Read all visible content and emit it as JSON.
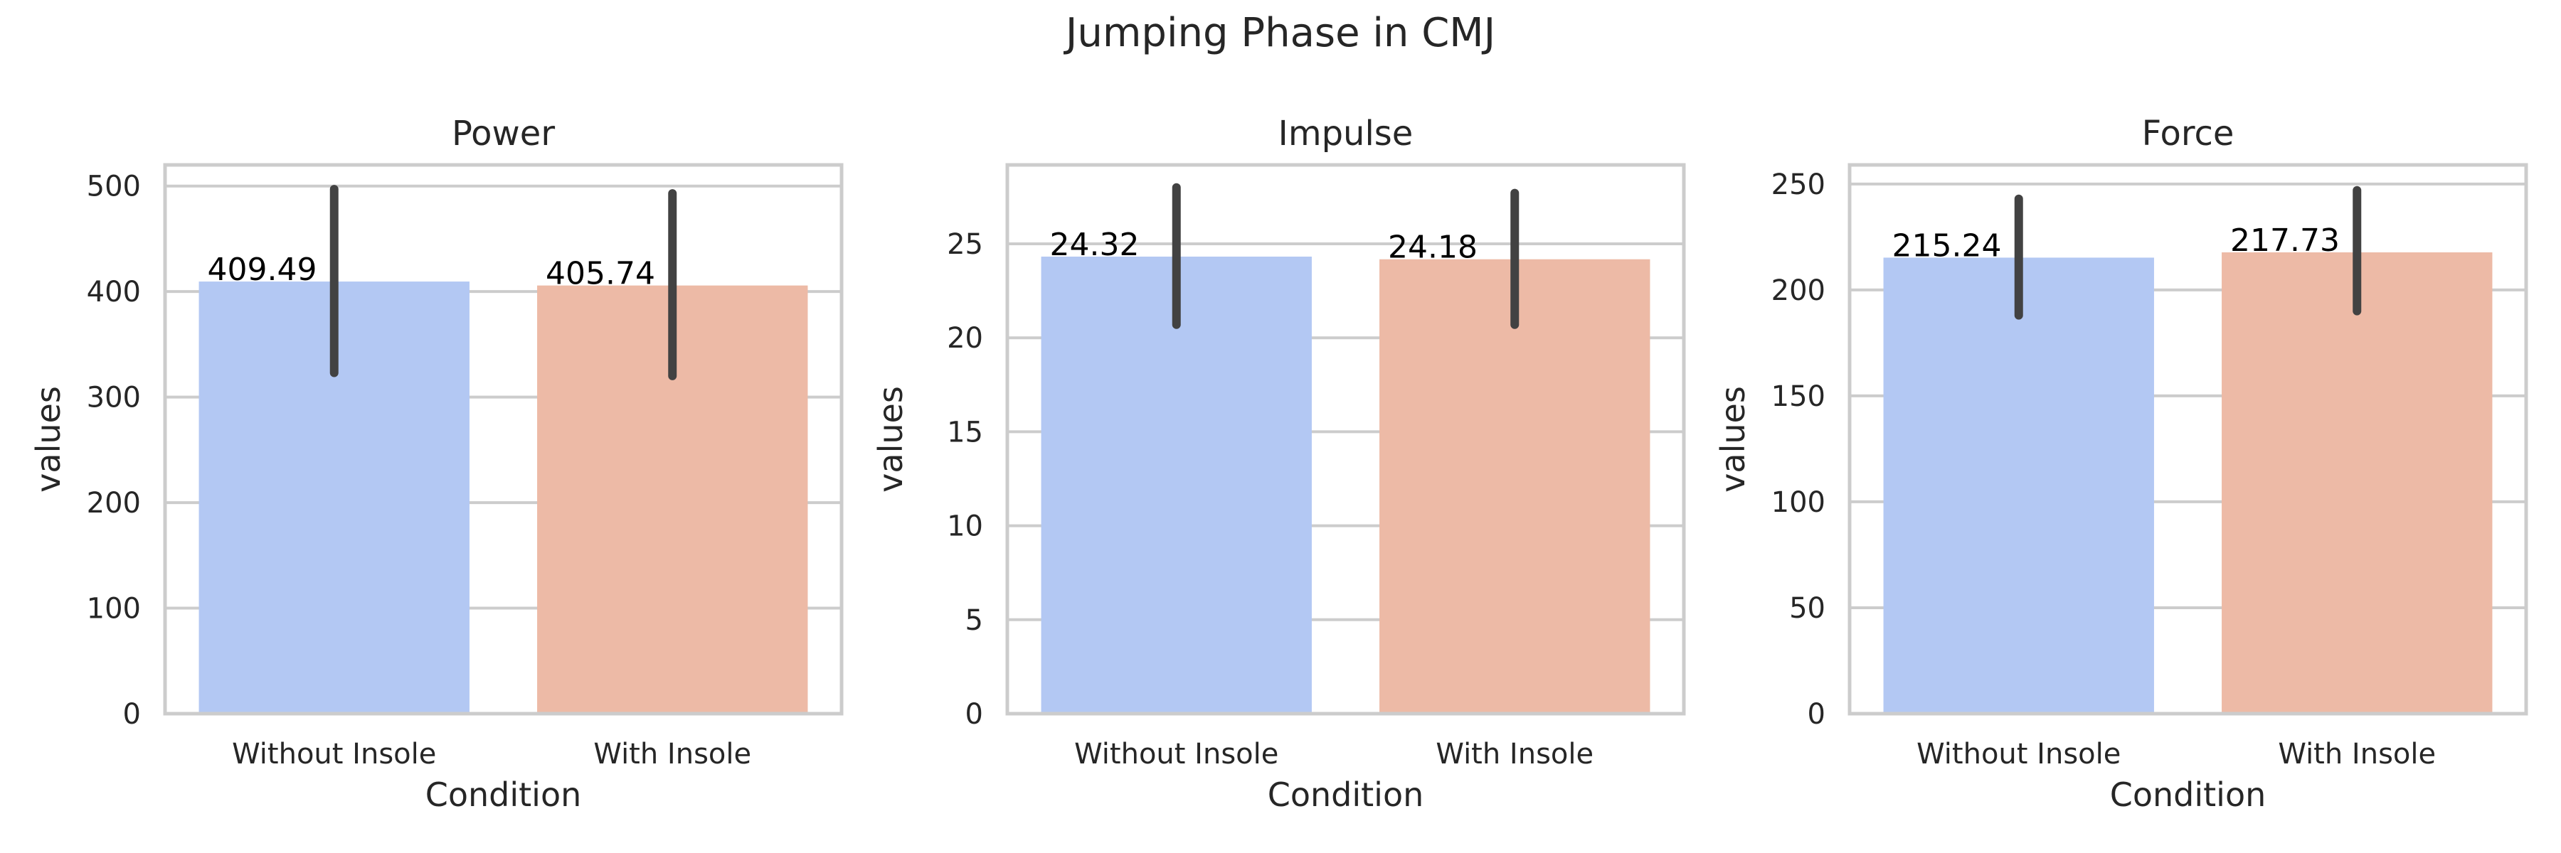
{
  "chart_data": {
    "suptitle": "Jumping Phase in CMJ",
    "type": "bar",
    "grid": true,
    "panels": [
      {
        "title": "Power",
        "xlabel": "Condition",
        "ylabel": "values",
        "categories": [
          "Without Insole",
          "With Insole"
        ],
        "values": [
          409.49,
          405.74
        ],
        "value_labels": [
          "409.49",
          "405.74"
        ],
        "error_low": [
          323,
          320
        ],
        "error_high": [
          497,
          493
        ],
        "colors": [
          "#b3c8f3",
          "#edbaa6"
        ],
        "ylim": [
          0,
          520
        ],
        "yticks": [
          0,
          100,
          200,
          300,
          400,
          500
        ],
        "ytick_labels": [
          "0",
          "100",
          "200",
          "300",
          "400",
          "500"
        ]
      },
      {
        "title": "Impulse",
        "xlabel": "Condition",
        "ylabel": "values",
        "categories": [
          "Without Insole",
          "With Insole"
        ],
        "values": [
          24.32,
          24.18
        ],
        "value_labels": [
          "24.32",
          "24.18"
        ],
        "error_low": [
          20.7,
          20.7
        ],
        "error_high": [
          28.0,
          27.7
        ],
        "colors": [
          "#b3c8f3",
          "#edbaa6"
        ],
        "ylim": [
          0,
          29.2
        ],
        "yticks": [
          0,
          5,
          10,
          15,
          20,
          25
        ],
        "ytick_labels": [
          "0",
          "5",
          "10",
          "15",
          "20",
          "25"
        ]
      },
      {
        "title": "Force",
        "xlabel": "Condition",
        "ylabel": "values",
        "categories": [
          "Without Insole",
          "With Insole"
        ],
        "values": [
          215.24,
          217.73
        ],
        "value_labels": [
          "215.24",
          "217.73"
        ],
        "error_low": [
          188,
          190
        ],
        "error_high": [
          243,
          247
        ],
        "colors": [
          "#b3c8f3",
          "#edbaa6"
        ],
        "ylim": [
          0,
          259
        ],
        "yticks": [
          0,
          50,
          100,
          150,
          200,
          250
        ],
        "ytick_labels": [
          "0",
          "50",
          "100",
          "150",
          "200",
          "250"
        ]
      }
    ]
  }
}
